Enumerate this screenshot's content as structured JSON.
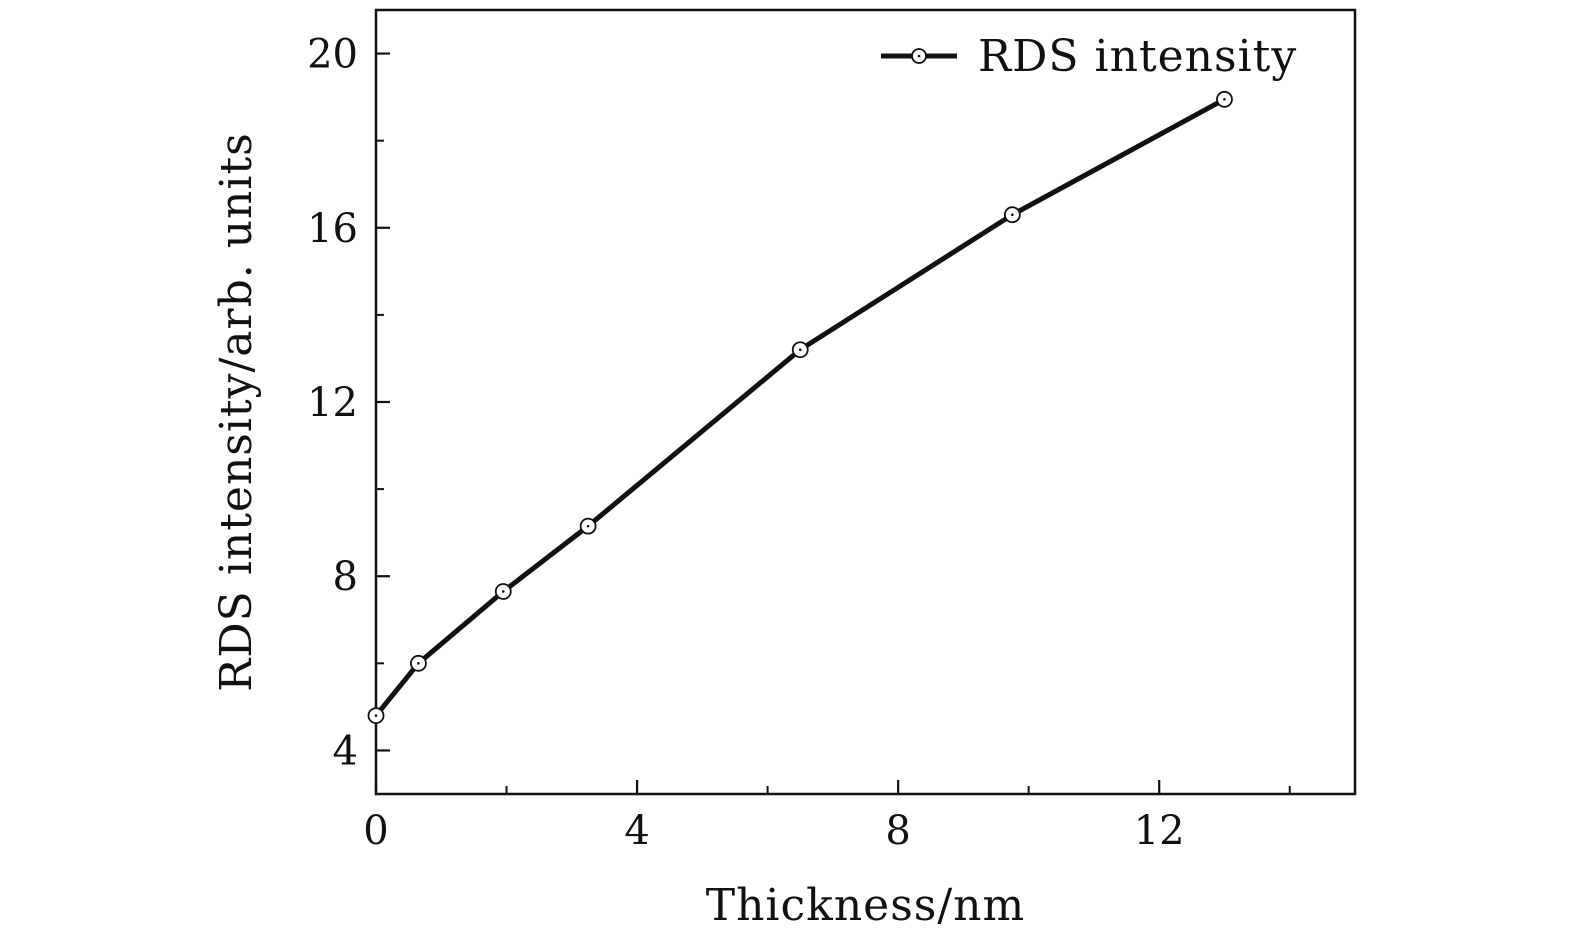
{
  "chart_data": {
    "type": "line",
    "title": "",
    "xlabel": "Thickness/nm",
    "ylabel": "RDS intensity/arb. units",
    "xlim": [
      0,
      15
    ],
    "ylim": [
      3,
      21
    ],
    "x_ticks": [
      0,
      4,
      8,
      12
    ],
    "x_minor_ticks": [
      2,
      6,
      10,
      14
    ],
    "y_ticks": [
      4,
      8,
      12,
      16,
      20
    ],
    "y_minor_ticks": [
      6,
      10,
      14,
      18
    ],
    "grid": false,
    "legend_position": "top-right",
    "series": [
      {
        "name": "RDS intensity",
        "marker": "open-circle",
        "color": "#111111",
        "x": [
          0,
          0.65,
          1.95,
          3.25,
          6.5,
          9.75,
          13.0
        ],
        "y": [
          4.8,
          6.0,
          7.65,
          9.15,
          13.2,
          16.3,
          18.95
        ]
      }
    ]
  }
}
